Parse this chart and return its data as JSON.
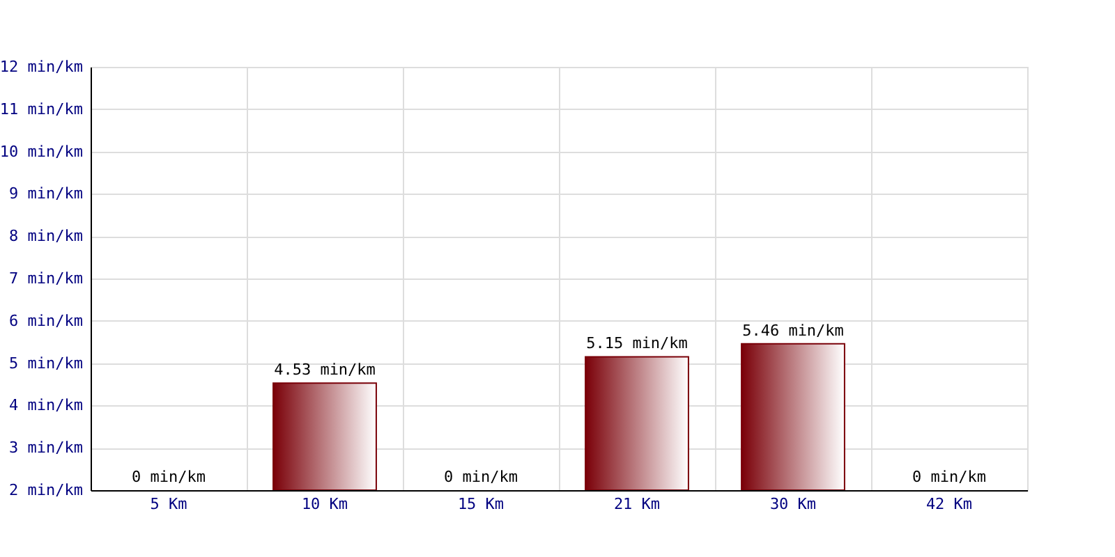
{
  "chart_data": {
    "type": "bar",
    "categories": [
      "5 Km",
      "10 Km",
      "15 Km",
      "21 Km",
      "30 Km",
      "42 Km"
    ],
    "values": [
      null,
      4.53,
      null,
      5.15,
      5.46,
      null
    ],
    "value_labels": [
      "0 min/km",
      "4.53 min/km",
      "0 min/km",
      "5.15 min/km",
      "5.46 min/km",
      "0 min/km"
    ],
    "color": "#7a0008",
    "ylim": [
      2,
      12
    ],
    "yticks": [
      {
        "value": 2,
        "label": "2 min/km"
      },
      {
        "value": 3,
        "label": "3 min/km"
      },
      {
        "value": 4,
        "label": "4 min/km"
      },
      {
        "value": 5,
        "label": "5 min/km"
      },
      {
        "value": 6,
        "label": "6 min/km"
      },
      {
        "value": 7,
        "label": "7 min/km"
      },
      {
        "value": 8,
        "label": "8 min/km"
      },
      {
        "value": 9,
        "label": "9 min/km"
      },
      {
        "value": 10,
        "label": "10 min/km"
      },
      {
        "value": 11,
        "label": "11 min/km"
      },
      {
        "value": 12,
        "label": "12 min/km"
      }
    ],
    "grid": true
  }
}
